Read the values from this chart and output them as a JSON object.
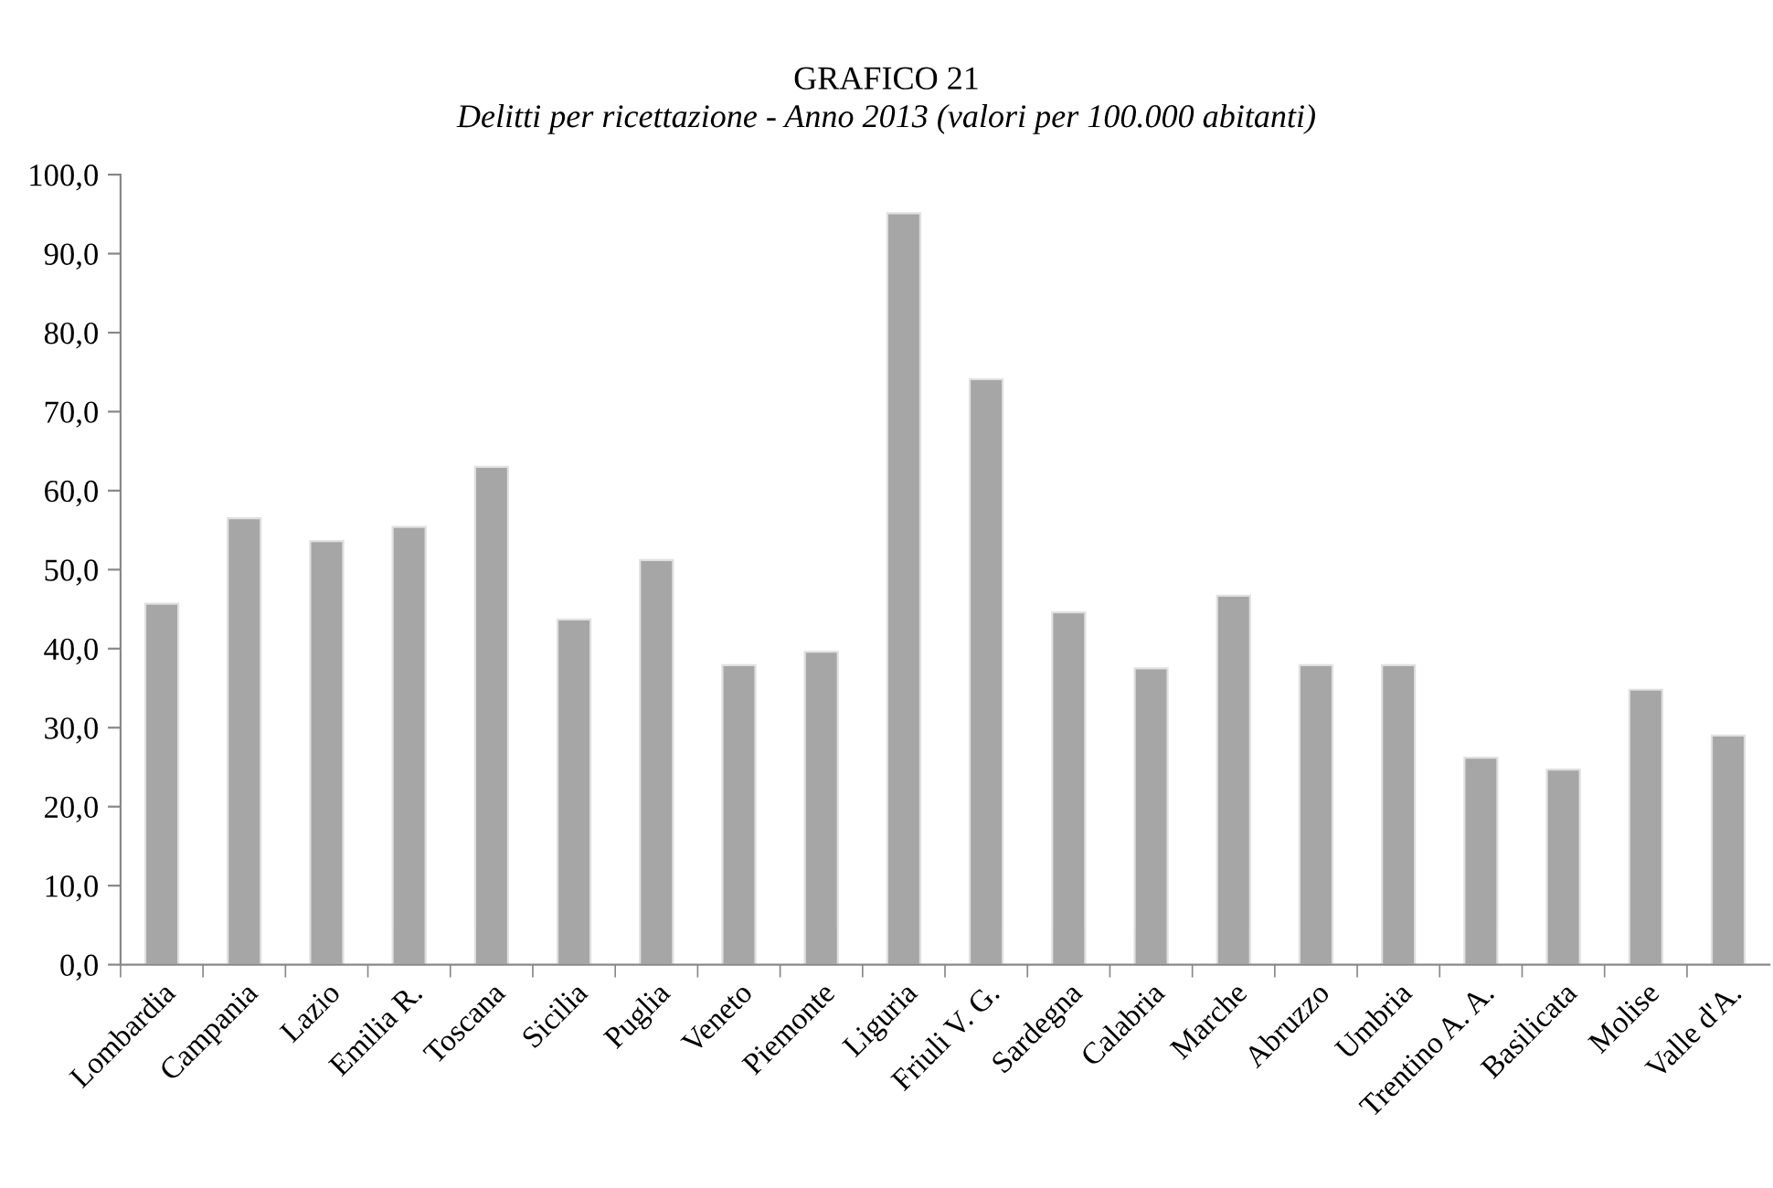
{
  "chart_data": {
    "type": "bar",
    "title": "GRAFICO 21",
    "subtitle": "Delitti per ricettazione - Anno 2013 (valori per 100.000 abitanti)",
    "categories": [
      "Lombardia",
      "Campania",
      "Lazio",
      "Emilia R.",
      "Toscana",
      "Sicilia",
      "Puglia",
      "Veneto",
      "Piemonte",
      "Liguria",
      "Friuli V. G.",
      "Sardegna",
      "Calabria",
      "Marche",
      "Abruzzo",
      "Umbria",
      "Trentino A. A.",
      "Basilicata",
      "Molise",
      "Valle d'A."
    ],
    "values": [
      45.7,
      56.5,
      53.6,
      55.4,
      63.0,
      43.7,
      51.2,
      37.9,
      39.6,
      95.1,
      74.1,
      44.6,
      37.5,
      46.7,
      37.9,
      37.9,
      26.2,
      24.7,
      34.8,
      29.0
    ],
    "color": "#a6a6a6",
    "ylim": [
      0,
      100
    ],
    "yticks": [
      {
        "value": 0,
        "label": "0,0"
      },
      {
        "value": 10,
        "label": "10,0"
      },
      {
        "value": 20,
        "label": "20,0"
      },
      {
        "value": 30,
        "label": "30,0"
      },
      {
        "value": 40,
        "label": "40,0"
      },
      {
        "value": 50,
        "label": "50,0"
      },
      {
        "value": 60,
        "label": "60,0"
      },
      {
        "value": 70,
        "label": "70,0"
      },
      {
        "value": 80,
        "label": "80,0"
      },
      {
        "value": 90,
        "label": "90,0"
      },
      {
        "value": 100,
        "label": "100,0"
      }
    ],
    "grid": false,
    "legend": false
  }
}
